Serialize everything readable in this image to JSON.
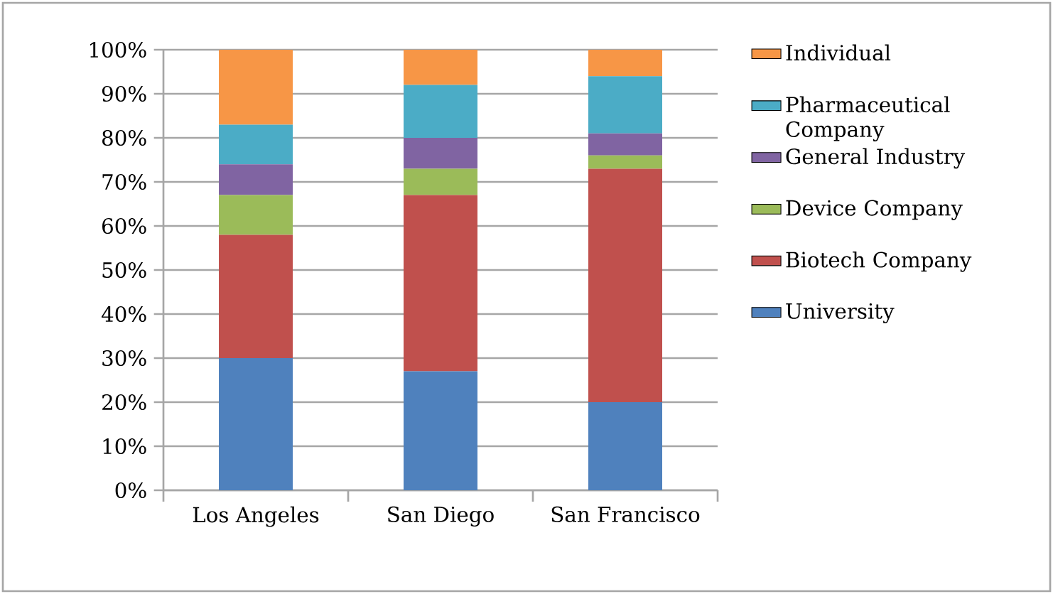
{
  "chart_data": {
    "type": "bar",
    "stacked": true,
    "categories": [
      "Los Angeles",
      "San Diego",
      "San Francisco"
    ],
    "series": [
      {
        "name": "University",
        "color": "#4f81bd",
        "values": [
          30,
          27,
          20
        ]
      },
      {
        "name": "Biotech Company",
        "color": "#c0504d",
        "values": [
          28,
          40,
          53
        ]
      },
      {
        "name": "Device Company",
        "color": "#9bbb59",
        "values": [
          9,
          6,
          3
        ]
      },
      {
        "name": "General Industry",
        "color": "#8064a2",
        "values": [
          7,
          7,
          5
        ]
      },
      {
        "name": "Pharmaceutical Company",
        "color": "#4bacc6",
        "values": [
          9,
          12,
          13
        ]
      },
      {
        "name": "Individual",
        "color": "#f79646",
        "values": [
          17,
          8,
          6
        ]
      }
    ],
    "ylim": [
      0,
      100
    ],
    "yticks": [
      {
        "value": 0,
        "label": "0%"
      },
      {
        "value": 10,
        "label": "10%"
      },
      {
        "value": 20,
        "label": "20%"
      },
      {
        "value": 30,
        "label": "30%"
      },
      {
        "value": 40,
        "label": "40%"
      },
      {
        "value": 50,
        "label": "50%"
      },
      {
        "value": 60,
        "label": "60%"
      },
      {
        "value": 70,
        "label": "70%"
      },
      {
        "value": 80,
        "label": "80%"
      },
      {
        "value": 90,
        "label": "90%"
      },
      {
        "value": 100,
        "label": "100%"
      }
    ],
    "grid": "y",
    "legend": "right"
  }
}
